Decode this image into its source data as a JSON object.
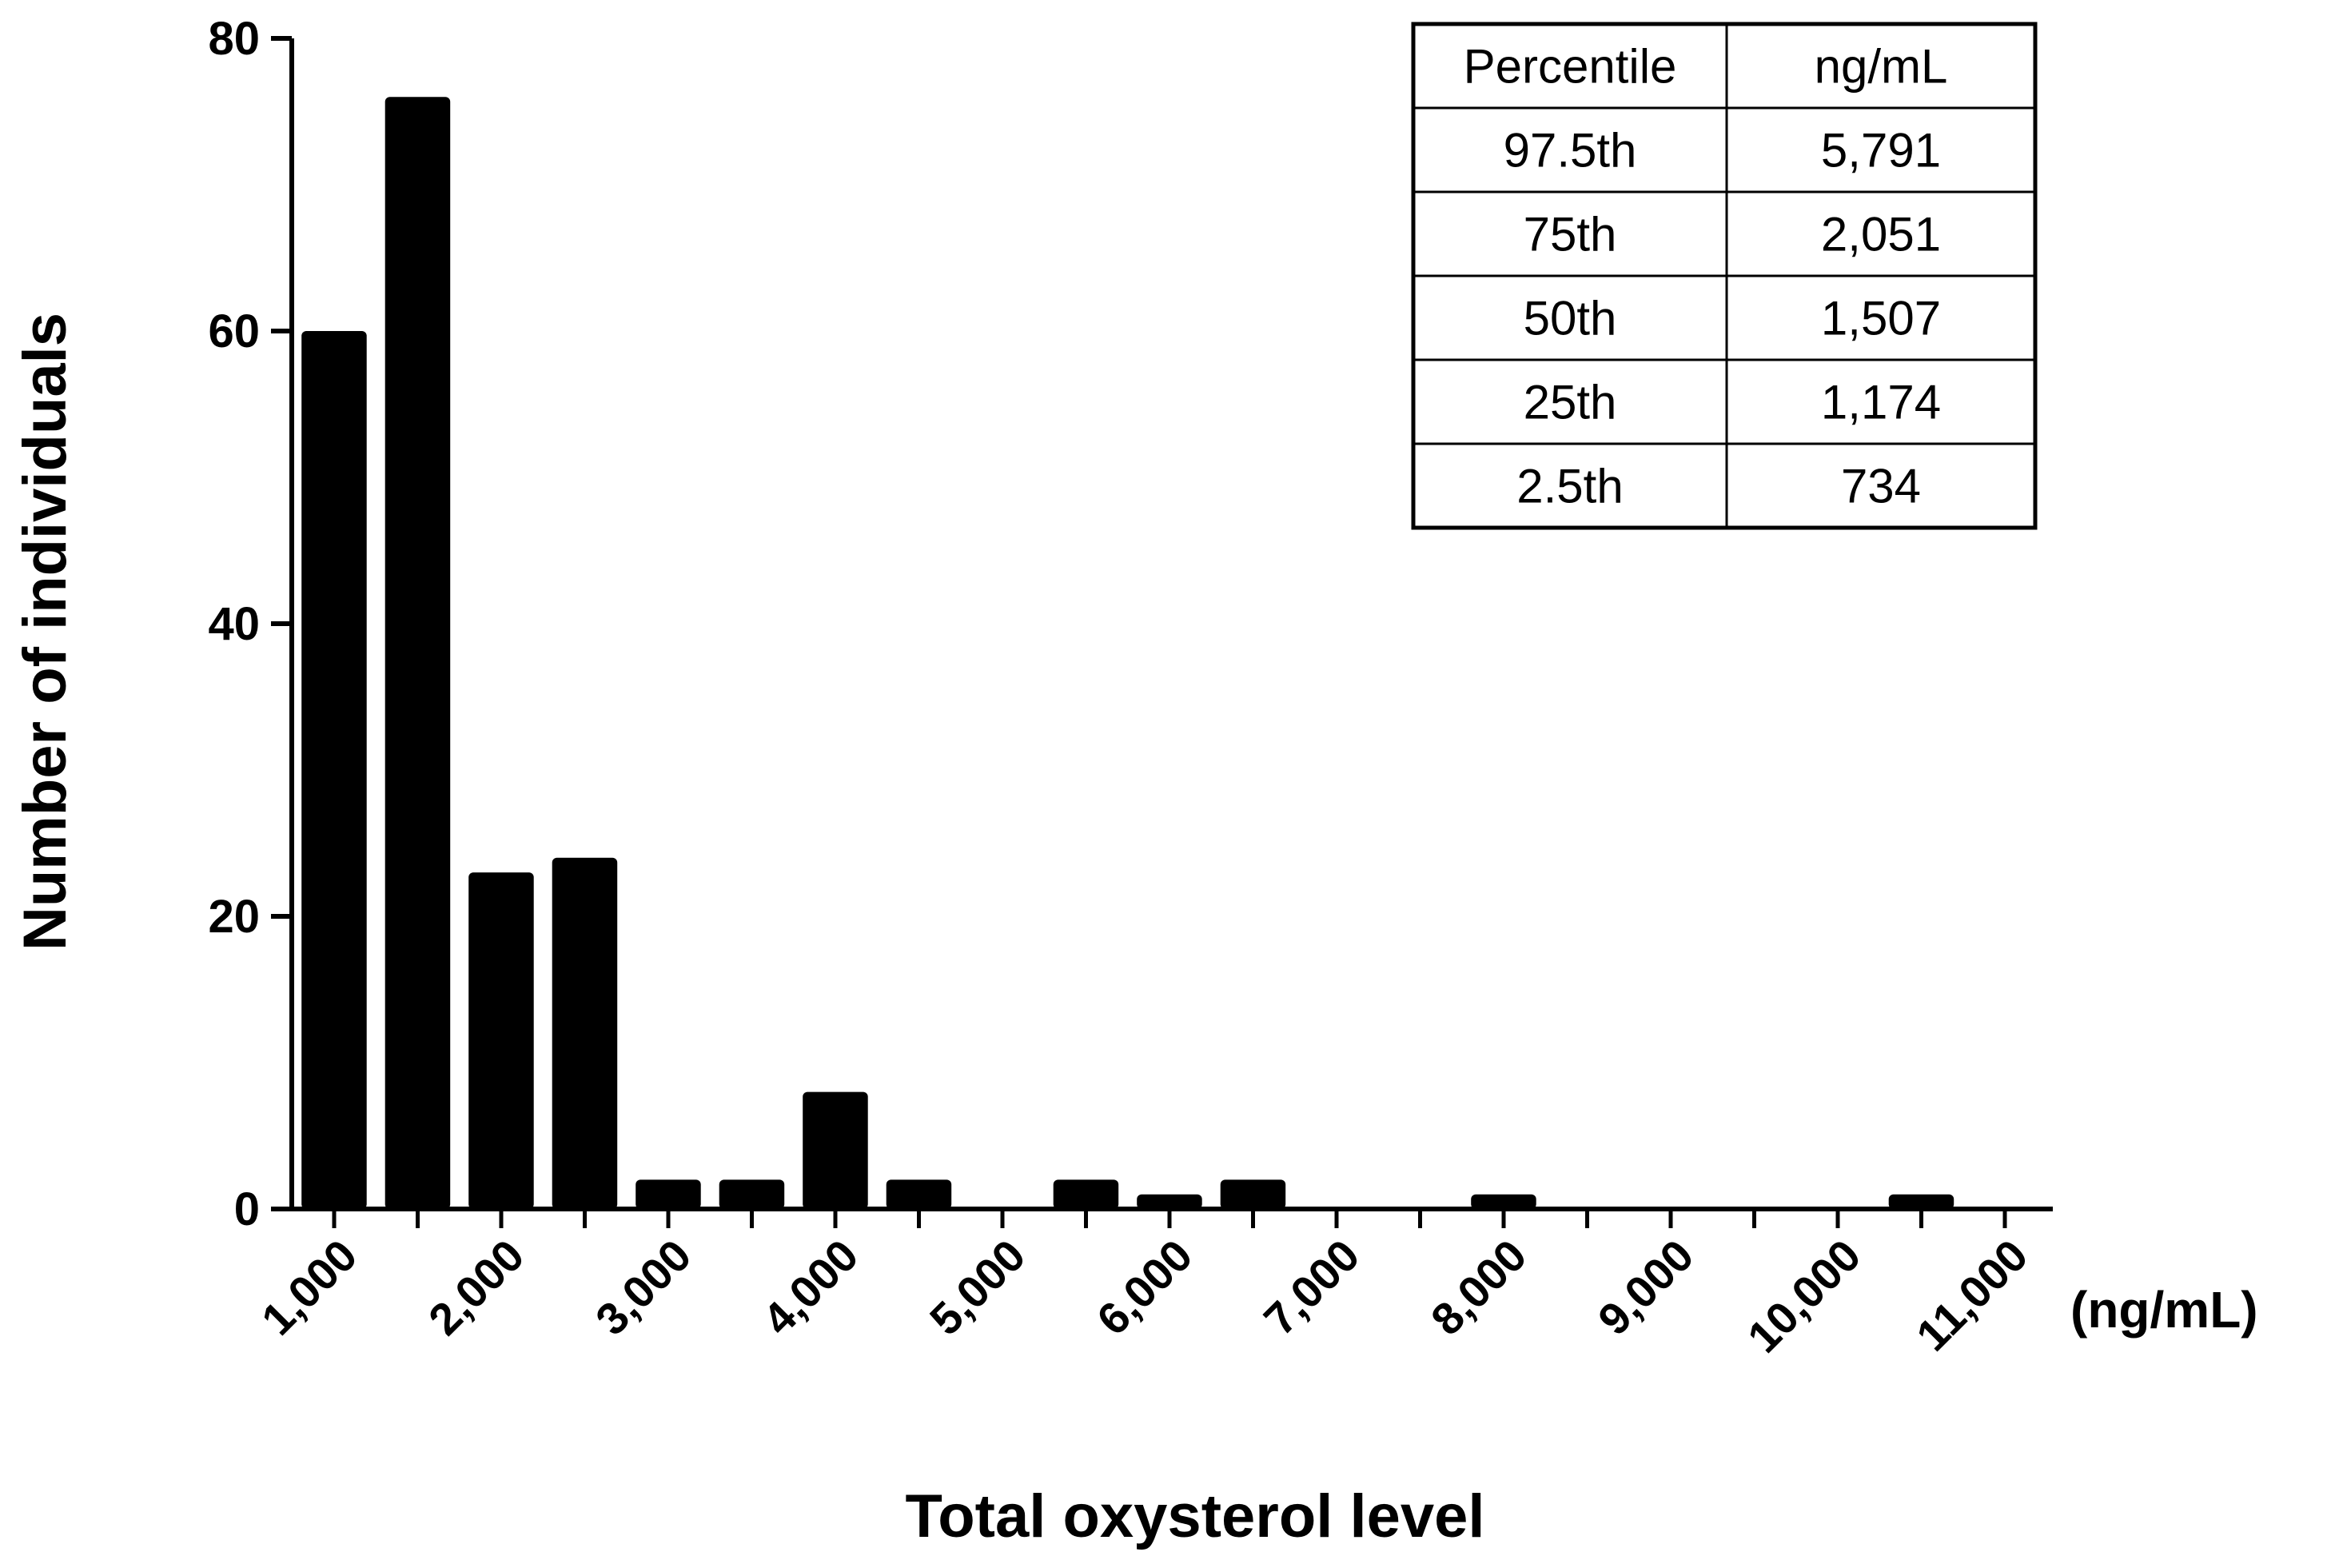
{
  "chart_data": {
    "type": "bar",
    "xlabel": "Total oxysterol level",
    "ylabel": "Number of individuals",
    "x_unit": "(ng/mL)",
    "ylim": [
      0,
      80
    ],
    "y_ticks": [
      0,
      20,
      40,
      60,
      80
    ],
    "xlim": [
      750,
      11250
    ],
    "x_tick_values": [
      1000,
      2000,
      3000,
      4000,
      5000,
      6000,
      7000,
      8000,
      9000,
      10000,
      11000
    ],
    "x_tick_labels": [
      "1,000",
      "2,000",
      "3,000",
      "4,000",
      "5,000",
      "6,000",
      "7,000",
      "8,000",
      "9,000",
      "10,000",
      "11,000"
    ],
    "bin_width": 500,
    "bins": [
      {
        "x": 1000,
        "value": 60
      },
      {
        "x": 1500,
        "value": 76
      },
      {
        "x": 2000,
        "value": 23
      },
      {
        "x": 2500,
        "value": 24
      },
      {
        "x": 3000,
        "value": 2
      },
      {
        "x": 3500,
        "value": 2
      },
      {
        "x": 4000,
        "value": 8
      },
      {
        "x": 4500,
        "value": 2
      },
      {
        "x": 5000,
        "value": 0
      },
      {
        "x": 5500,
        "value": 2
      },
      {
        "x": 6000,
        "value": 1
      },
      {
        "x": 6500,
        "value": 2
      },
      {
        "x": 7000,
        "value": 0
      },
      {
        "x": 7500,
        "value": 0
      },
      {
        "x": 8000,
        "value": 1
      },
      {
        "x": 8500,
        "value": 0
      },
      {
        "x": 9000,
        "value": 0
      },
      {
        "x": 9500,
        "value": 0
      },
      {
        "x": 10000,
        "value": 0
      },
      {
        "x": 10500,
        "value": 1
      },
      {
        "x": 11000,
        "value": 0
      }
    ],
    "grid": false,
    "inset_table": {
      "headers": [
        "Percentile",
        "ng/mL"
      ],
      "rows": [
        [
          "97.5th",
          "5,791"
        ],
        [
          "75th",
          "2,051"
        ],
        [
          "50th",
          "1,507"
        ],
        [
          "25th",
          "1,174"
        ],
        [
          "2.5th",
          "734"
        ]
      ]
    }
  }
}
